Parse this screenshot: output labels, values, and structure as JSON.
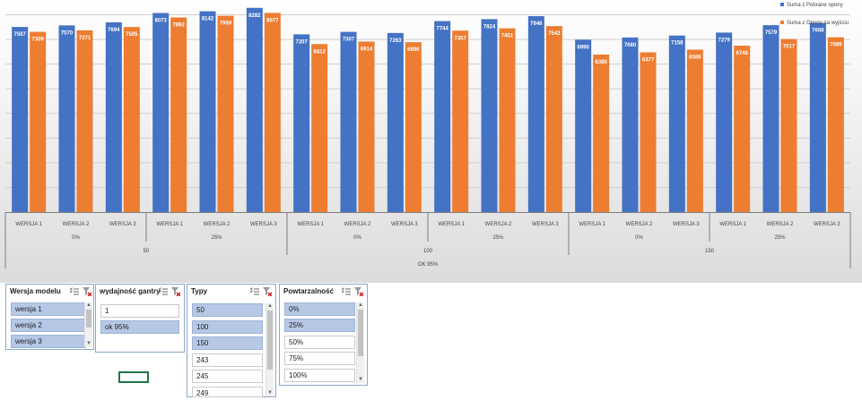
{
  "chart_data": {
    "type": "bar",
    "x": {
      "outer": [
        {
          "label": "OK 95%"
        }
      ],
      "typy": [
        {
          "label": "50"
        },
        {
          "label": "100"
        },
        {
          "label": "150"
        }
      ],
      "powtarzalnosc": [
        "0%",
        "25%",
        "0%",
        "25%",
        "0%",
        "25%"
      ],
      "wersja": [
        "WERSJA 1",
        "WERSJA 2",
        "WERSJA 3",
        "WERSJA 1",
        "WERSJA 2",
        "WERSJA 3",
        "WERSJA 1",
        "WERSJA 2",
        "WERSJA 3",
        "WERSJA 1",
        "WERSJA 2",
        "WERSJA 3",
        "WERSJA 1",
        "WERSJA 2",
        "WERSJA 3",
        "WERSJA 1",
        "WERSJA 2",
        "WERSJA 3"
      ]
    },
    "series": [
      {
        "name": "Suma z Pobrane opony",
        "color": "#4472c4",
        "values": [
          7507,
          7570,
          7694,
          8073,
          8142,
          8282,
          7207,
          7307,
          7263,
          7744,
          7824,
          7946,
          6990,
          7080,
          7158,
          7279,
          7579,
          7668
        ]
      },
      {
        "name": "Suma z Opony na wyjściu",
        "color": "#ed7d31",
        "values": [
          7309,
          7371,
          7505,
          7892,
          7959,
          8077,
          6812,
          6914,
          6890,
          7357,
          7451,
          7542,
          6388,
          6477,
          6586,
          6748,
          7017,
          7089
        ]
      }
    ],
    "ylim": [
      0,
      8600
    ],
    "grid": true,
    "legend": "top-right"
  },
  "slicers": {
    "wersja_modelu": {
      "title": "Wersja modelu",
      "items": [
        {
          "label": "wersja 1",
          "selected": true
        },
        {
          "label": "wersja 2",
          "selected": true
        },
        {
          "label": "wersja 3",
          "selected": true
        }
      ]
    },
    "wydajnosc_gantry": {
      "title": "wydajność gantry",
      "items": [
        {
          "label": "1",
          "selected": false
        },
        {
          "label": "ok 95%",
          "selected": true
        }
      ]
    },
    "typy": {
      "title": "Typy",
      "items": [
        {
          "label": "50",
          "selected": true
        },
        {
          "label": "100",
          "selected": true
        },
        {
          "label": "150",
          "selected": true
        },
        {
          "label": "243",
          "selected": false
        },
        {
          "label": "245",
          "selected": false
        },
        {
          "label": "249",
          "selected": false
        }
      ]
    },
    "powtarzalnosc": {
      "title": "Powtarzalność",
      "items": [
        {
          "label": "0%",
          "selected": true
        },
        {
          "label": "25%",
          "selected": true
        },
        {
          "label": "50%",
          "selected": false
        },
        {
          "label": "75%",
          "selected": false
        },
        {
          "label": "100%",
          "selected": false
        }
      ]
    }
  }
}
